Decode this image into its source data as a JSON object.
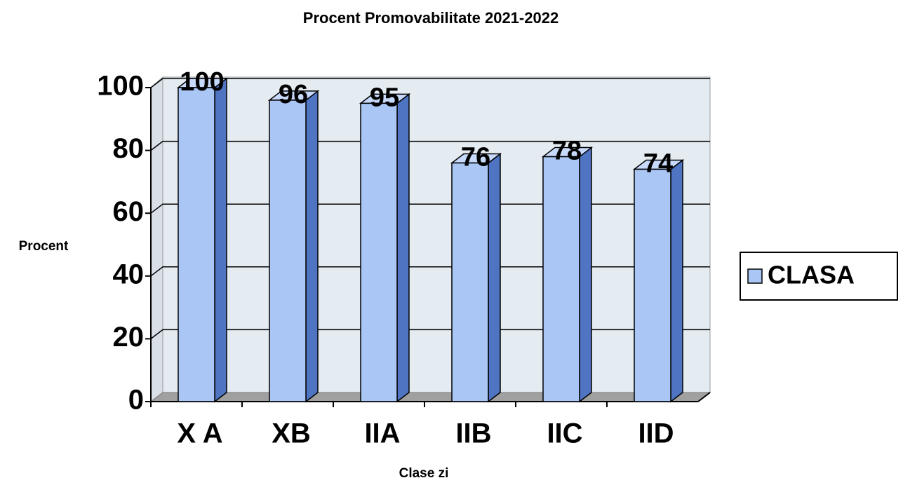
{
  "chart_data": {
    "type": "bar3d",
    "title": "Procent Promovabilitate 2021-2022",
    "x_label": "Clase zi",
    "y_label": "Procent",
    "categories": [
      "X A",
      "XB",
      "IIA",
      "IIB",
      "IIC",
      "IID"
    ],
    "series": [
      {
        "name": "CLASA",
        "color": "#a9c6f5",
        "values": [
          100,
          96,
          95,
          76,
          78,
          74
        ]
      }
    ],
    "ylim": [
      0,
      100
    ],
    "yticks": [
      0,
      20,
      40,
      60,
      80,
      100
    ],
    "grid": true,
    "legend": "right"
  }
}
